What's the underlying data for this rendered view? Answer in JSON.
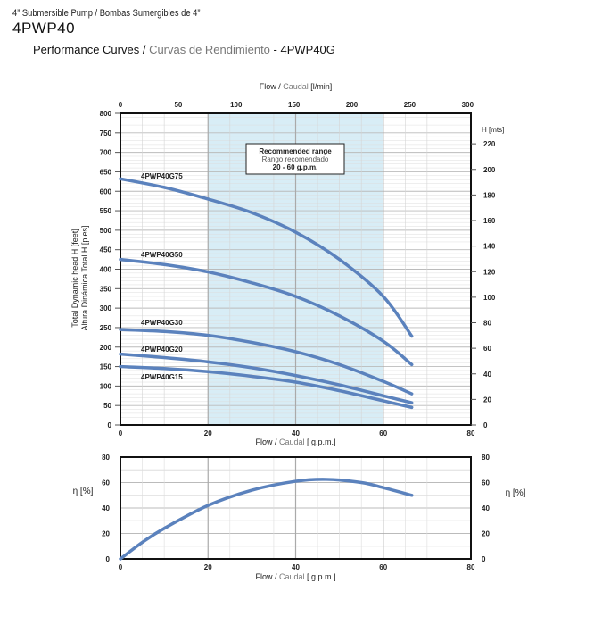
{
  "header": {
    "subtitle": "4” Submersible Pump / Bombas Sumergibles de 4”",
    "model": "4PWP40",
    "section_title_en": "Performance Curves /",
    "section_title_es": "Curvas de Rendimiento",
    "section_title_model": "- 4PWP40G"
  },
  "chart_data": [
    {
      "type": "line",
      "title": "",
      "xlabel_en": "Flow /",
      "xlabel_es": "Caudal",
      "xlabel_unit": "[ g.p.m.]",
      "xlim": [
        0,
        80
      ],
      "xticks": [
        0,
        20,
        40,
        60,
        80
      ],
      "x2label_en": "Flow /",
      "x2label_es": "Caudal",
      "x2label_unit": "[l/min]",
      "x2lim": [
        0,
        302.8
      ],
      "x2ticks": [
        0,
        50,
        100,
        150,
        200,
        250,
        300
      ],
      "ylabel_en": "Total Dynamic head H [feet]",
      "ylabel_es": "Altura Dinámica Total H [pies]",
      "ylim": [
        0,
        800
      ],
      "yticks": [
        0,
        50,
        100,
        150,
        200,
        250,
        300,
        350,
        400,
        450,
        500,
        550,
        600,
        650,
        700,
        750,
        800
      ],
      "y2label": "H [mts]",
      "y2ticks": [
        0,
        20,
        40,
        60,
        80,
        100,
        120,
        140,
        160,
        180,
        200,
        220
      ],
      "grid": true,
      "line_color": "#5b82bd",
      "range_color": "#d8edf6",
      "annotation": {
        "line1": "Recommended range",
        "line2": "Rango recomendado",
        "line3": "20 - 60 g.p.m.",
        "x_from": 20,
        "x_to": 60
      },
      "x": [
        0,
        10,
        20,
        30,
        40,
        50,
        60,
        66.5
      ],
      "series": [
        {
          "name": "4PWP40G75",
          "values": [
            632,
            610,
            580,
            545,
            495,
            425,
            330,
            228
          ]
        },
        {
          "name": "4PWP40G50",
          "values": [
            425,
            412,
            393,
            365,
            330,
            280,
            215,
            155
          ]
        },
        {
          "name": "4PWP40G30",
          "values": [
            245,
            240,
            230,
            212,
            188,
            155,
            112,
            80
          ]
        },
        {
          "name": "4PWP40G20",
          "values": [
            182,
            173,
            162,
            147,
            127,
            103,
            75,
            57
          ]
        },
        {
          "name": "4PWP40G15",
          "values": [
            150,
            145,
            137,
            125,
            110,
            88,
            62,
            45
          ]
        }
      ]
    },
    {
      "type": "line",
      "title": "",
      "xlabel_en": "Flow /",
      "xlabel_es": "Caudal",
      "xlabel_unit": "[ g.p.m.]",
      "xlim": [
        0,
        80
      ],
      "xticks": [
        0,
        20,
        40,
        60,
        80
      ],
      "ylabel": "η [%]",
      "ylim": [
        0,
        80
      ],
      "yticks": [
        0,
        20,
        40,
        60,
        80
      ],
      "grid": true,
      "x": [
        0,
        5,
        10,
        20,
        30,
        40,
        47,
        55,
        60,
        66.5
      ],
      "series": [
        {
          "values": [
            0,
            13,
            24,
            42,
            54,
            61,
            62.5,
            60,
            56,
            50
          ]
        }
      ]
    }
  ]
}
